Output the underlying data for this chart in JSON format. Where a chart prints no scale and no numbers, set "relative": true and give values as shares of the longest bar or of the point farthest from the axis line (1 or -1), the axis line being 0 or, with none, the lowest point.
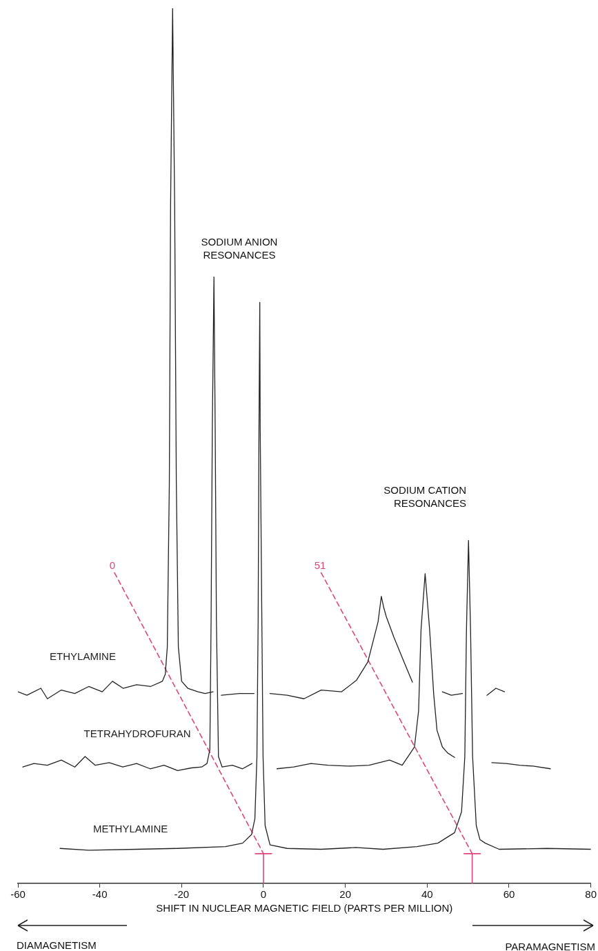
{
  "chart_data": {
    "type": "line",
    "relative": true,
    "xlabel": "SHIFT IN NUCLEAR MAGNETIC FIELD (PARTS PER MILLION)",
    "xlim": [
      -60,
      80
    ],
    "xticks": [
      -60,
      -40,
      -20,
      0,
      20,
      40,
      60,
      80
    ],
    "grid": false,
    "legend": false,
    "marker": "none",
    "line_style": "solid",
    "series": [
      {
        "name": "ETHYLAMINE",
        "color": "#222222",
        "x": [
          -60,
          -57.8,
          -54.4,
          -52.8,
          -49.4,
          -46.1,
          -42.7,
          -39.4,
          -36.9,
          -34.3,
          -31.0,
          -27.6,
          -24.7,
          -24.0,
          -23.5,
          -23.0,
          -22.7,
          -22.2,
          -21.7,
          -21.3,
          -20.8,
          -20.0,
          -18.5,
          -16.0,
          -14.3,
          -12.3,
          -11.3,
          -10.3,
          -5.9,
          -2.3,
          -0.5,
          1.6,
          5.8,
          9.9,
          14.1,
          19.1,
          22.7,
          25.5,
          28.0,
          28.8,
          29.4,
          30.0,
          31.9,
          33.9,
          36.4,
          40,
          43.7,
          45.9,
          48.6,
          51.5,
          54.6,
          56.8,
          58.9
        ],
        "values": [
          0.219,
          0.215,
          0.223,
          0.211,
          0.221,
          0.217,
          0.225,
          0.219,
          0.231,
          0.223,
          0.227,
          0.225,
          0.231,
          0.239,
          0.27,
          0.459,
          0.774,
          1,
          0.774,
          0.459,
          0.27,
          0.231,
          0.223,
          0.219,
          0.217,
          0.219,
          null,
          0.215,
          0.217,
          0.217,
          null,
          0.217,
          0.215,
          0.211,
          0.221,
          0.219,
          0.232,
          0.253,
          0.299,
          0.328,
          0.315,
          0.305,
          0.281,
          0.258,
          0.23,
          null,
          0.219,
          0.215,
          0.217,
          null,
          0.215,
          0.223,
          0.219
        ]
      },
      {
        "name": "TETRAHYDROFURAN",
        "color": "#222222",
        "x": [
          -58.8,
          -56.1,
          -52.8,
          -49.4,
          -46.1,
          -43.6,
          -41.1,
          -37.7,
          -34.4,
          -31.0,
          -27.7,
          -24.3,
          -21.0,
          -17.6,
          -15.1,
          -13.8,
          -13.1,
          -12.8,
          -12.5,
          -12.1,
          -11.8,
          -11.5,
          -11.0,
          -10.1,
          -7.6,
          -5.1,
          -2.8,
          0,
          3.3,
          7.4,
          11.6,
          15.8,
          20.8,
          25.8,
          30.8,
          33.9,
          36.9,
          37.9,
          38.5,
          39.5,
          40.6,
          41.6,
          42.4,
          43.7,
          45.0,
          46.7,
          51,
          55.8,
          59.3,
          62.6,
          65.9,
          70.1
        ],
        "values": [
          0.133,
          0.137,
          0.135,
          0.141,
          0.133,
          0.145,
          0.135,
          0.138,
          0.133,
          0.137,
          0.131,
          0.135,
          0.129,
          0.132,
          0.133,
          0.137,
          0.153,
          0.3,
          0.52,
          0.693,
          0.52,
          0.3,
          0.145,
          0.133,
          0.135,
          0.131,
          0.137,
          null,
          0.131,
          0.133,
          0.137,
          0.135,
          0.134,
          0.135,
          0.141,
          0.135,
          0.156,
          0.197,
          0.29,
          0.354,
          0.29,
          0.216,
          0.175,
          0.156,
          0.149,
          0.144,
          null,
          0.138,
          0.137,
          0.135,
          0.134,
          0.131
        ]
      },
      {
        "name": "METHYLAMINE",
        "color": "#222222",
        "x": [
          -49.7,
          -42.7,
          -31.0,
          -21.0,
          -9.3,
          -5.1,
          -2.9,
          -2.1,
          -1.6,
          -1.3,
          -1.1,
          -0.9,
          -0.8,
          -0.4,
          -0.1,
          0.4,
          1.6,
          5.8,
          14.1,
          22.5,
          29.2,
          37.5,
          42.6,
          46.7,
          48.4,
          49.2,
          49.6,
          50.1,
          50.6,
          51.1,
          52.0,
          52.9,
          54.2,
          57.6,
          69.3,
          80
        ],
        "values": [
          0.04,
          0.038,
          0.039,
          0.04,
          0.042,
          0.046,
          0.056,
          0.074,
          0.145,
          0.302,
          0.52,
          0.664,
          0.52,
          0.302,
          0.145,
          0.066,
          0.044,
          0.04,
          0.039,
          0.041,
          0.039,
          0.042,
          0.046,
          0.058,
          0.082,
          0.145,
          0.29,
          0.392,
          0.29,
          0.145,
          0.066,
          0.05,
          0.046,
          0.039,
          0.04,
          0.039
        ]
      },
      {
        "color": "#e0457b",
        "line_style": "dashed",
        "x": [
          -36.4,
          0
        ],
        "values": [
          0.355,
          0.034
        ]
      },
      {
        "color": "#e0457b",
        "x": [
          -2,
          2,
          0,
          0
        ],
        "values": [
          0.034,
          0.034,
          0.034,
          0
        ]
      },
      {
        "color": "#e0457b",
        "line_style": "dashed",
        "x": [
          14.1,
          51
        ],
        "values": [
          0.355,
          0.034
        ]
      },
      {
        "color": "#e0457b",
        "x": [
          49,
          53,
          51,
          51
        ],
        "values": [
          0.034,
          0.034,
          0.034,
          0
        ]
      }
    ],
    "annotations": [
      "SODIUM ANION\nRESONANCES",
      "SODIUM CATION\nRESONANCES",
      "0",
      "51",
      "DIAMAGNETISM",
      "PARAMAGNETISM"
    ]
  }
}
